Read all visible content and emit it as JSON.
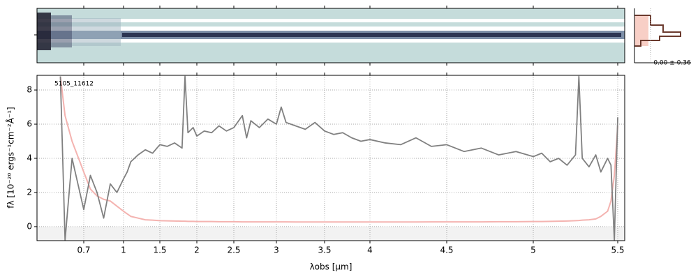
{
  "chart_data": {
    "type": "line",
    "annotation": "5105_11612",
    "profile_label": "0.00 ± 0.36",
    "xlabel": "λobs [μm]",
    "ylabel": "fλ [10⁻²⁰ ergs⁻¹cm⁻²Å⁻¹]",
    "xlim": [
      0.5,
      5.55
    ],
    "xticks": [
      0.7,
      1.0,
      1.5,
      2.0,
      2.5,
      3.0,
      3.5,
      4.0,
      4.5,
      5.0,
      5.5
    ],
    "ylim": [
      -0.82,
      8.86
    ],
    "yticks": [
      0,
      2,
      4,
      6,
      8
    ],
    "grid": true,
    "x": [
      0.6,
      0.62,
      0.65,
      0.7,
      0.75,
      0.8,
      0.85,
      0.9,
      0.95,
      1.0,
      1.05,
      1.1,
      1.2,
      1.3,
      1.4,
      1.5,
      1.6,
      1.7,
      1.8,
      1.84,
      1.88,
      1.95,
      2.0,
      2.1,
      2.2,
      2.3,
      2.4,
      2.5,
      2.6,
      2.65,
      2.7,
      2.8,
      2.9,
      3.0,
      3.05,
      3.1,
      3.2,
      3.3,
      3.4,
      3.5,
      3.6,
      3.7,
      3.8,
      3.9,
      4.0,
      4.1,
      4.2,
      4.3,
      4.4,
      4.5,
      4.6,
      4.7,
      4.8,
      4.9,
      5.0,
      5.05,
      5.1,
      5.15,
      5.2,
      5.25,
      5.27,
      5.29,
      5.33,
      5.37,
      5.4,
      5.44,
      5.46,
      5.48,
      5.5
    ],
    "series": [
      {
        "color": "#f4b3b0",
        "values": [
          8.8,
          6.5,
          5,
          3.2,
          2.2,
          1.8,
          1.6,
          1.5,
          1.2,
          0.9,
          0.75,
          0.6,
          0.5,
          0.4,
          0.38,
          0.35,
          0.34,
          0.33,
          0.32,
          0.32,
          0.31,
          0.31,
          0.3,
          0.3,
          0.3,
          0.29,
          0.29,
          0.29,
          0.28,
          0.28,
          0.28,
          0.28,
          0.28,
          0.28,
          0.28,
          0.28,
          0.27,
          0.27,
          0.27,
          0.27,
          0.27,
          0.27,
          0.27,
          0.27,
          0.27,
          0.27,
          0.27,
          0.27,
          0.28,
          0.28,
          0.28,
          0.28,
          0.29,
          0.29,
          0.3,
          0.3,
          0.31,
          0.32,
          0.33,
          0.35,
          0.36,
          0.38,
          0.4,
          0.45,
          0.6,
          0.9,
          1.5,
          3,
          5.9
        ]
      },
      {
        "color": "#808080",
        "values": [
          8.8,
          -0.8,
          4,
          1,
          3,
          2,
          0.5,
          2.5,
          2,
          2.8,
          3.2,
          3.8,
          4.2,
          4.5,
          4.3,
          4.8,
          4.7,
          4.9,
          4.6,
          8.8,
          5.5,
          5.8,
          5.3,
          5.6,
          5.5,
          5.9,
          5.6,
          5.8,
          6.5,
          5.2,
          6.2,
          5.8,
          6.3,
          6.0,
          7.0,
          6.1,
          5.9,
          5.7,
          6.1,
          5.6,
          5.4,
          5.5,
          5.2,
          5.0,
          5.1,
          4.9,
          4.8,
          5.2,
          4.7,
          4.8,
          4.4,
          4.6,
          4.2,
          4.4,
          4.1,
          4.3,
          3.8,
          4.0,
          3.6,
          4.2,
          8.8,
          4.0,
          3.5,
          4.2,
          3.2,
          4.0,
          3.6,
          -0.8,
          6.4
        ]
      }
    ]
  }
}
